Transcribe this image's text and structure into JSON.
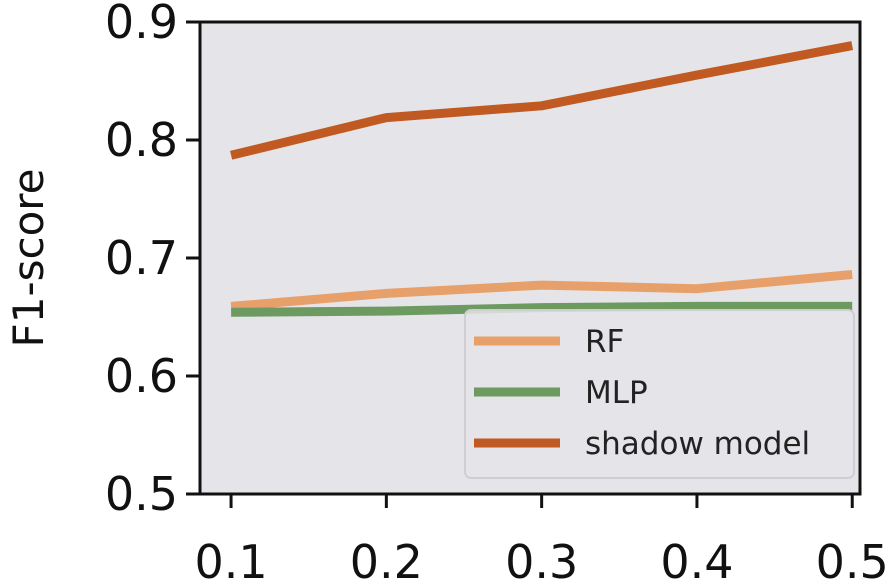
{
  "chart_data": {
    "type": "line",
    "title": "",
    "xlabel": "",
    "ylabel": "F1-score",
    "x": [
      0.1,
      0.2,
      0.3,
      0.4,
      0.5
    ],
    "x_tick_labels": [
      "0.1",
      "0.2",
      "0.3",
      "0.4",
      "0.5"
    ],
    "y_tick_values": [
      0.5,
      0.6,
      0.7,
      0.8,
      0.9
    ],
    "y_tick_labels": [
      "0.5",
      "0.6",
      "0.7",
      "0.8",
      "0.9"
    ],
    "xlim": [
      0.08,
      0.505
    ],
    "ylim": [
      0.5,
      0.9
    ],
    "grid": false,
    "background": "#e5e4e8",
    "legend_position": "lower-right",
    "series": [
      {
        "name": "RF",
        "color": "#e8a06a",
        "values": [
          0.659,
          0.67,
          0.677,
          0.674,
          0.686
        ]
      },
      {
        "name": "MLP",
        "color": "#6c9a60",
        "values": [
          0.654,
          0.655,
          0.658,
          0.659,
          0.659
        ]
      },
      {
        "name": "shadow model",
        "color": "#c05a22",
        "values": [
          0.787,
          0.819,
          0.829,
          0.855,
          0.88
        ]
      }
    ]
  }
}
